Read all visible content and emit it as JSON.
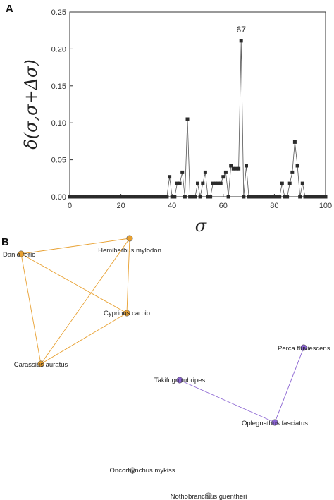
{
  "panels": {
    "a_letter": "A",
    "b_letter": "B"
  },
  "chart_data": {
    "type": "line",
    "marker": "square",
    "xlabel": "σ",
    "ylabel": "δ(σ,σ+Δσ)",
    "xlim": [
      0,
      100
    ],
    "ylim": [
      0,
      0.25
    ],
    "xticks": [
      "0",
      "20",
      "40",
      "60",
      "80",
      "100"
    ],
    "yticks": [
      "0.00",
      "0.05",
      "0.10",
      "0.15",
      "0.20",
      "0.25"
    ],
    "annotation": {
      "text": "67",
      "x": 67,
      "y": 0.211
    },
    "x": [
      0,
      1,
      2,
      3,
      4,
      5,
      6,
      7,
      8,
      9,
      10,
      11,
      12,
      13,
      14,
      15,
      16,
      17,
      18,
      19,
      20,
      21,
      22,
      23,
      24,
      25,
      26,
      27,
      28,
      29,
      30,
      31,
      32,
      33,
      34,
      35,
      36,
      37,
      38,
      39,
      40,
      41,
      42,
      43,
      44,
      45,
      46,
      47,
      48,
      49,
      50,
      51,
      52,
      53,
      54,
      55,
      56,
      57,
      58,
      59,
      60,
      61,
      62,
      63,
      64,
      65,
      66,
      67,
      68,
      69,
      70,
      71,
      72,
      73,
      74,
      75,
      76,
      77,
      78,
      79,
      80,
      81,
      82,
      83,
      84,
      85,
      86,
      87,
      88,
      89,
      90,
      91,
      92,
      93,
      94,
      95,
      96,
      97,
      98,
      99,
      100
    ],
    "y": [
      0,
      0,
      0,
      0,
      0,
      0,
      0,
      0,
      0,
      0,
      0,
      0,
      0,
      0,
      0,
      0,
      0,
      0,
      0,
      0,
      0,
      0,
      0,
      0,
      0,
      0,
      0,
      0,
      0,
      0,
      0,
      0,
      0,
      0,
      0,
      0,
      0,
      0,
      0,
      0.027,
      0,
      0,
      0.018,
      0.018,
      0.033,
      0,
      0.105,
      0,
      0,
      0,
      0.018,
      0,
      0.018,
      0.033,
      0,
      0,
      0.018,
      0.018,
      0.018,
      0.018,
      0.027,
      0.033,
      0,
      0.042,
      0.038,
      0.038,
      0.038,
      0.211,
      0,
      0.042,
      0,
      0,
      0,
      0,
      0,
      0,
      0,
      0,
      0,
      0,
      0,
      0,
      0,
      0.018,
      0,
      0,
      0.018,
      0.033,
      0.074,
      0.042,
      0,
      0.018,
      0,
      0,
      0,
      0,
      0,
      0,
      0,
      0,
      0
    ]
  },
  "network": {
    "colors": {
      "orange": "#e8a030",
      "purple": "#8a63d2"
    },
    "clusters": [
      {
        "color": "#e8a030",
        "nodes": [
          "Hemibarbus mylodon",
          "Danio rerio",
          "Cyprinus carpio",
          "Carassius auratus"
        ],
        "edges": [
          [
            0,
            1
          ],
          [
            0,
            2
          ],
          [
            0,
            3
          ],
          [
            1,
            2
          ],
          [
            1,
            3
          ],
          [
            2,
            3
          ]
        ]
      },
      {
        "color": "#8a63d2",
        "nodes": [
          "Perca fluviescens",
          "Takifugu rubripes",
          "Oplegnathus fasciatus"
        ],
        "edges": [
          [
            0,
            2
          ],
          [
            1,
            2
          ]
        ]
      },
      {
        "color": "#cccccc",
        "nodes": [
          "Oncorhynchus mykiss"
        ],
        "edges": []
      },
      {
        "color": "#cccccc",
        "nodes": [
          "Nothobranchius guentheri"
        ],
        "edges": []
      }
    ]
  }
}
